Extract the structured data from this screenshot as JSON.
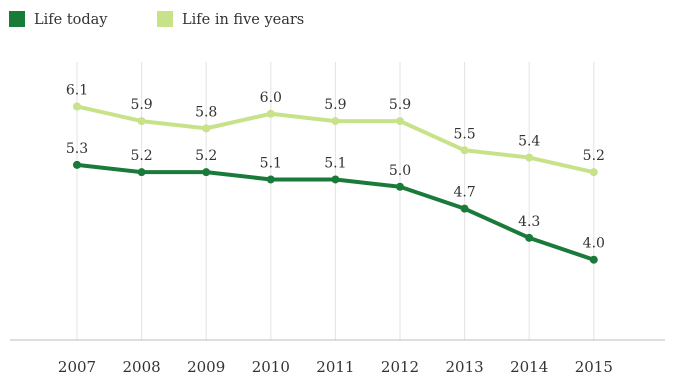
{
  "chart_data": {
    "type": "line",
    "title": "",
    "xlabel": "",
    "ylabel": "",
    "x": [
      "2007",
      "2008",
      "2009",
      "2010",
      "2011",
      "2012",
      "2013",
      "2014",
      "2015"
    ],
    "series": [
      {
        "name": "Life today",
        "color": "#1a7a3a",
        "values": [
          5.3,
          5.2,
          5.2,
          5.1,
          5.1,
          5.0,
          4.7,
          4.3,
          4.0
        ],
        "labels": [
          "5.3",
          "5.2",
          "5.2",
          "5.1",
          "5.1",
          "5.0",
          "4.7",
          "4.3",
          "4.0"
        ]
      },
      {
        "name": "Life in five years",
        "color": "#c8e28a",
        "values": [
          6.1,
          5.9,
          5.8,
          6.0,
          5.9,
          5.9,
          5.5,
          5.4,
          5.2
        ],
        "labels": [
          "6.1",
          "5.9",
          "5.8",
          "6.0",
          "5.9",
          "5.9",
          "5.5",
          "5.4",
          "5.2"
        ]
      }
    ],
    "ylim": [
      2.9,
      6.6
    ],
    "grid": "vertical",
    "legend": "top-left"
  }
}
